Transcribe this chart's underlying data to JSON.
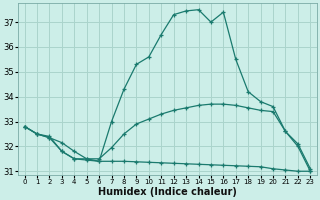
{
  "xlabel": "Humidex (Indice chaleur)",
  "background_color": "#cceee8",
  "grid_color": "#aad4cc",
  "line_color": "#1a7a6e",
  "x": [
    0,
    1,
    2,
    3,
    4,
    5,
    6,
    7,
    8,
    9,
    10,
    11,
    12,
    13,
    14,
    15,
    16,
    17,
    18,
    19,
    20,
    21,
    22,
    23
  ],
  "curve_max": [
    32.8,
    32.5,
    32.4,
    31.8,
    31.5,
    31.5,
    31.4,
    33.0,
    34.3,
    35.3,
    35.6,
    36.5,
    37.3,
    37.45,
    37.5,
    37.0,
    37.4,
    35.5,
    34.2,
    33.8,
    33.6,
    32.6,
    32.0,
    31.0
  ],
  "curve_mean": [
    32.8,
    32.5,
    32.35,
    32.15,
    31.8,
    31.5,
    31.5,
    31.95,
    32.5,
    32.9,
    33.1,
    33.3,
    33.45,
    33.55,
    33.65,
    33.7,
    33.7,
    33.65,
    33.55,
    33.45,
    33.4,
    32.6,
    32.1,
    31.1
  ],
  "curve_min": [
    32.8,
    32.5,
    32.35,
    31.8,
    31.5,
    31.45,
    31.4,
    31.4,
    31.4,
    31.38,
    31.36,
    31.34,
    31.32,
    31.3,
    31.28,
    31.26,
    31.24,
    31.22,
    31.2,
    31.18,
    31.1,
    31.05,
    31.0,
    31.0
  ],
  "ylim_min": 30.85,
  "ylim_max": 37.75,
  "yticks": [
    31,
    32,
    33,
    34,
    35,
    36,
    37
  ],
  "xticks": [
    0,
    1,
    2,
    3,
    4,
    5,
    6,
    7,
    8,
    9,
    10,
    11,
    12,
    13,
    14,
    15,
    16,
    17,
    18,
    19,
    20,
    21,
    22,
    23
  ],
  "xlabel_fontsize": 7,
  "tick_fontsize": 6,
  "xtick_fontsize": 5
}
